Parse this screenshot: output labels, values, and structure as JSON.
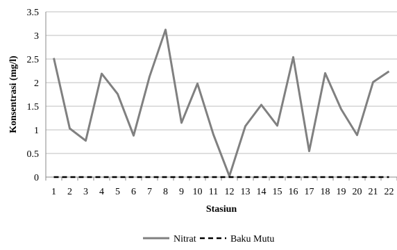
{
  "chart_data": {
    "type": "line",
    "title": "",
    "xlabel": "Stasiun",
    "ylabel": "Konsentrasi (mg/l)",
    "categories": [
      "1",
      "2",
      "3",
      "4",
      "5",
      "6",
      "7",
      "8",
      "9",
      "10",
      "11",
      "12",
      "13",
      "14",
      "15",
      "16",
      "17",
      "18",
      "19",
      "20",
      "21",
      "22"
    ],
    "ylim": [
      0,
      3.5
    ],
    "yticks": [
      0,
      0.5,
      1,
      1.5,
      2,
      2.5,
      3,
      3.5
    ],
    "ytick_labels": [
      "0",
      "0.5",
      "1",
      "1.5",
      "2",
      "2.5",
      "3",
      "3.5"
    ],
    "grid": "horizontal",
    "legend_position": "bottom",
    "series": [
      {
        "name": "Nitrat",
        "color": "#808080",
        "style": "solid",
        "values": [
          2.52,
          1.03,
          0.77,
          2.19,
          1.76,
          0.88,
          2.13,
          3.12,
          1.15,
          1.98,
          0.9,
          0.02,
          1.08,
          1.53,
          1.09,
          2.54,
          0.55,
          2.2,
          1.44,
          0.89,
          2.01,
          2.24
        ]
      },
      {
        "name": "Baku Mutu",
        "color": "#000000",
        "style": "dashed",
        "values": [
          0,
          0,
          0,
          0,
          0,
          0,
          0,
          0,
          0,
          0,
          0,
          0,
          0,
          0,
          0,
          0,
          0,
          0,
          0,
          0,
          0,
          0
        ]
      }
    ]
  }
}
